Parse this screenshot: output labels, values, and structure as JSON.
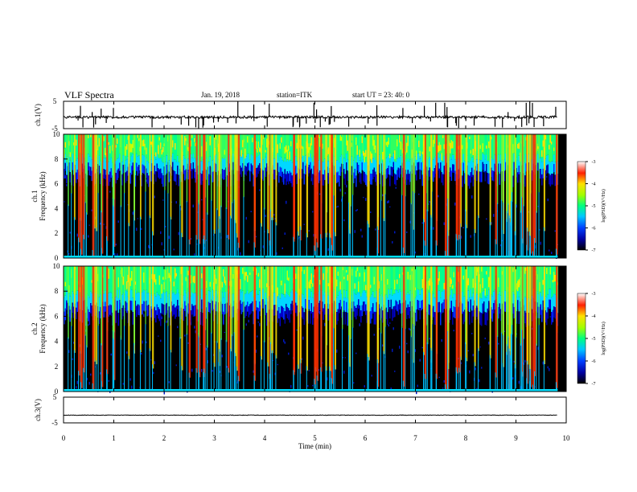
{
  "header": {
    "title": "VLF Spectra",
    "date": "Jan. 19, 2018",
    "station": "station=ITK",
    "start_ut": "start UT =  23: 40: 0"
  },
  "chart_data": [
    {
      "type": "line",
      "panel": "ch1-waveform",
      "ylabel": "ch.1(V)",
      "ylim": [
        -5,
        5
      ],
      "yticks": [
        "5",
        "-5"
      ],
      "xlim": [
        0,
        10
      ],
      "baseline": -0.8
    },
    {
      "type": "heatmap",
      "panel": "ch1-spectrogram",
      "ylabel": "Frequency (kHz)",
      "ylabel_prefix": "ch.1",
      "ylim": [
        0,
        10
      ],
      "yticks": [
        "0",
        "2",
        "4",
        "6",
        "8",
        "10"
      ],
      "xlim": [
        0,
        10
      ],
      "colorbar": {
        "label": "log(PSD)(V²/Hz)",
        "range": [
          -7,
          -3
        ],
        "ticks": [
          "-3",
          "-4",
          "-5",
          "-6",
          "-7"
        ]
      }
    },
    {
      "type": "heatmap",
      "panel": "ch2-spectrogram",
      "ylabel": "Frequency (kHz)",
      "ylabel_prefix": "ch.2",
      "ylim": [
        0,
        10
      ],
      "yticks": [
        "0",
        "2",
        "4",
        "6",
        "8",
        "10"
      ],
      "xlim": [
        0,
        10
      ],
      "colorbar": {
        "label": "log(PSD)(V²/Hz)",
        "range": [
          -7,
          -3
        ],
        "ticks": [
          "-3",
          "-4",
          "-5",
          "-6",
          "-7"
        ]
      }
    },
    {
      "type": "line",
      "panel": "ch3-waveform",
      "ylabel": "ch.3(V)",
      "ylim": [
        -5,
        5
      ],
      "yticks": [
        "5",
        "-5"
      ],
      "xlim": [
        0,
        10
      ],
      "baseline": -2
    }
  ],
  "xaxis": {
    "label": "Time (min)",
    "ticks": [
      "0",
      "1",
      "2",
      "3",
      "4",
      "5",
      "6",
      "7",
      "8",
      "9",
      "10"
    ]
  }
}
